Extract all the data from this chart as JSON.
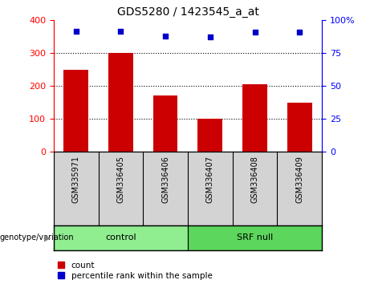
{
  "title": "GDS5280 / 1423545_a_at",
  "samples": [
    "GSM335971",
    "GSM336405",
    "GSM336406",
    "GSM336407",
    "GSM336408",
    "GSM336409"
  ],
  "bar_values": [
    250,
    300,
    170,
    100,
    205,
    148
  ],
  "dot_values": [
    91.5,
    91.5,
    87.5,
    87.0,
    90.5,
    90.5
  ],
  "bar_color": "#CC0000",
  "dot_color": "#0000CC",
  "left_ylim": [
    0,
    400
  ],
  "right_ylim": [
    0,
    100
  ],
  "left_yticks": [
    0,
    100,
    200,
    300,
    400
  ],
  "right_yticks": [
    0,
    25,
    50,
    75,
    100
  ],
  "right_yticklabels": [
    "0",
    "25",
    "50",
    "75",
    "100%"
  ],
  "grid_values": [
    100,
    200,
    300
  ],
  "legend_count_label": "count",
  "legend_pct_label": "percentile rank within the sample",
  "group_label_prefix": "genotype/variation",
  "plot_bg_color": "#ffffff",
  "sample_bg_color": "#d3d3d3",
  "group_bg_color": "#90EE90",
  "group_bg_color2": "#5CD65C",
  "control_label": "control",
  "srfnull_label": "SRF null"
}
